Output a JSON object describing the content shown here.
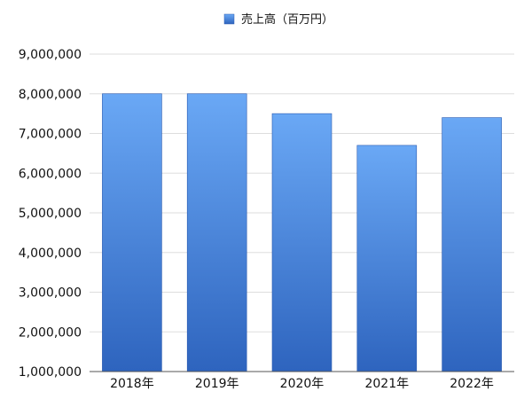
{
  "chart_data": {
    "type": "bar",
    "categories": [
      "2018年",
      "2019年",
      "2020年",
      "2021年",
      "2022年"
    ],
    "series": [
      {
        "name": "売上高（百万円）",
        "values": [
          8000000,
          8000000,
          7500000,
          6700000,
          7400000
        ]
      }
    ],
    "ylim": [
      1000000,
      9000000
    ],
    "yticks": [
      "1,000,000",
      "2,000,000",
      "3,000,000",
      "4,000,000",
      "5,000,000",
      "6,000,000",
      "7,000,000",
      "8,000,000",
      "9,000,000"
    ],
    "grid": true,
    "legend_position": "top-center",
    "colors": {
      "bar_top": "#6aa8f5",
      "bar_bottom": "#2e64be",
      "bar_edge": "#2a5ab0",
      "grid": "#dddddd",
      "axis": "#555555"
    }
  }
}
